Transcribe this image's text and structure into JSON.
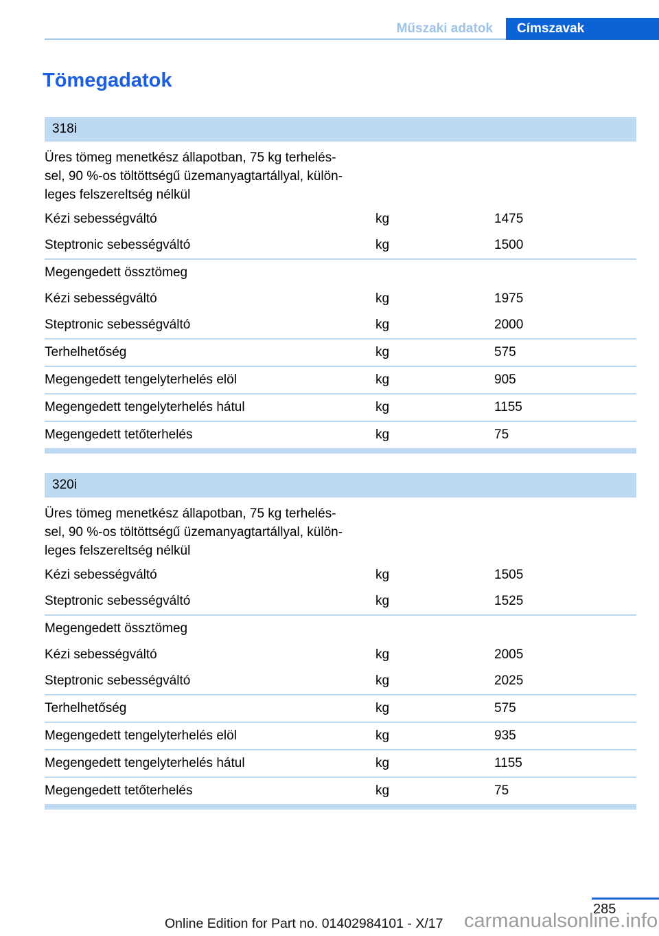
{
  "header": {
    "nav_left": "Műszaki adatok",
    "nav_right": "Címszavak"
  },
  "page": {
    "title": "Tömegadatok"
  },
  "tables": [
    {
      "model": "318i",
      "description": "Üres tömeg menetkész állapotban, 75 kg terhelés-\nsel, 90 %-os töltöttségű üzemanyagtartállyal, külön-\nleges felszereltség nélkül",
      "sections": [
        {
          "rows": [
            {
              "label": "Kézi sebességváltó",
              "unit": "kg",
              "value": "1475"
            },
            {
              "label": "Steptronic sebességváltó",
              "unit": "kg",
              "value": "1500"
            }
          ]
        },
        {
          "subheader": "Megengedett össztömeg",
          "rows": [
            {
              "label": "Kézi sebességváltó",
              "unit": "kg",
              "value": "1975"
            },
            {
              "label": "Steptronic sebességváltó",
              "unit": "kg",
              "value": "2000"
            }
          ]
        },
        {
          "rows": [
            {
              "label": "Terhelhetőség",
              "unit": "kg",
              "value": "575"
            }
          ]
        },
        {
          "rows": [
            {
              "label": "Megengedett tengelyterhelés elöl",
              "unit": "kg",
              "value": "905"
            }
          ]
        },
        {
          "rows": [
            {
              "label": "Megengedett tengelyterhelés hátul",
              "unit": "kg",
              "value": "1155"
            }
          ]
        },
        {
          "rows": [
            {
              "label": "Megengedett tetőterhelés",
              "unit": "kg",
              "value": "75"
            }
          ]
        }
      ]
    },
    {
      "model": "320i",
      "description": "Üres tömeg menetkész állapotban, 75 kg terhelés-\nsel, 90 %-os töltöttségű üzemanyagtartállyal, külön-\nleges felszereltség nélkül",
      "sections": [
        {
          "rows": [
            {
              "label": "Kézi sebességváltó",
              "unit": "kg",
              "value": "1505"
            },
            {
              "label": "Steptronic sebességváltó",
              "unit": "kg",
              "value": "1525"
            }
          ]
        },
        {
          "subheader": "Megengedett össztömeg",
          "rows": [
            {
              "label": "Kézi sebességváltó",
              "unit": "kg",
              "value": "2005"
            },
            {
              "label": "Steptronic sebességváltó",
              "unit": "kg",
              "value": "2025"
            }
          ]
        },
        {
          "rows": [
            {
              "label": "Terhelhetőség",
              "unit": "kg",
              "value": "575"
            }
          ]
        },
        {
          "rows": [
            {
              "label": "Megengedett tengelyterhelés elöl",
              "unit": "kg",
              "value": "935"
            }
          ]
        },
        {
          "rows": [
            {
              "label": "Megengedett tengelyterhelés hátul",
              "unit": "kg",
              "value": "1155"
            }
          ]
        },
        {
          "rows": [
            {
              "label": "Megengedett tetőterhelés",
              "unit": "kg",
              "value": "75"
            }
          ]
        }
      ]
    }
  ],
  "footer": {
    "page_number": "285",
    "edition_note": "Online Edition for Part no. 01402984101 - X/17",
    "watermark": "carmanualsonline.info"
  },
  "colors": {
    "accent_blue": "#0b63d6",
    "title_blue": "#1b5fdf",
    "footer_rule_blue": "#1c69d4",
    "light_blue_text": "#9dc3e8",
    "table_header_bg": "#bed9f2",
    "separator": "#bdd7ee",
    "watermark_gray": "#9b9b9b"
  }
}
